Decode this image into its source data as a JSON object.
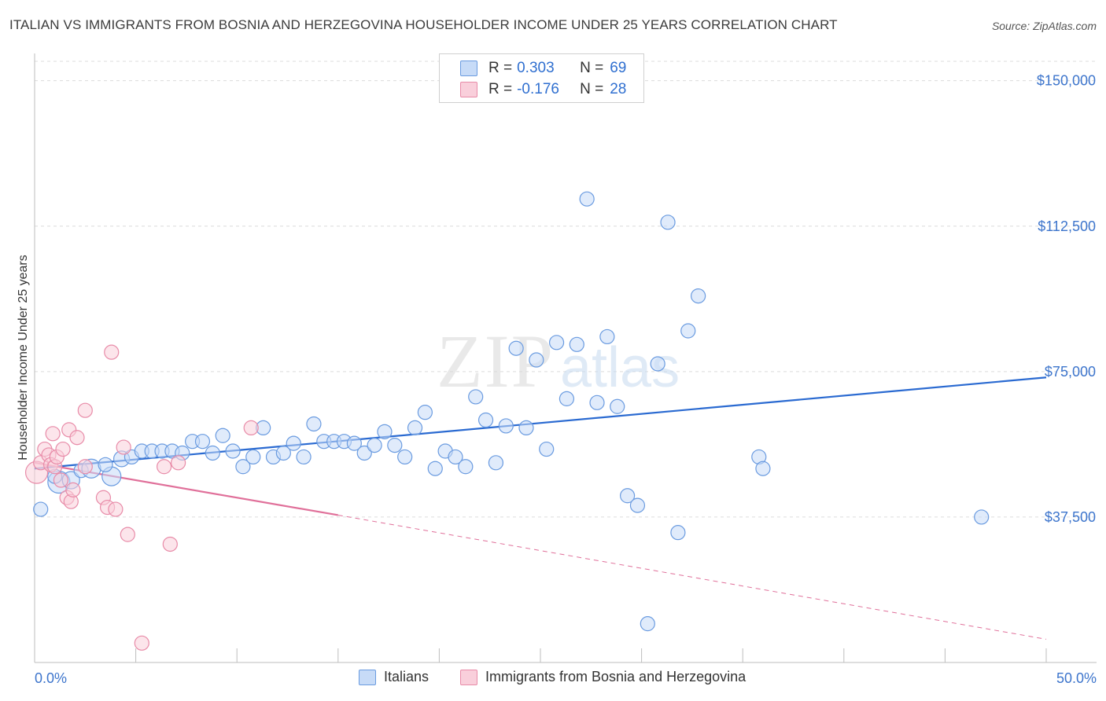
{
  "title": "ITALIAN VS IMMIGRANTS FROM BOSNIA AND HERZEGOVINA HOUSEHOLDER INCOME UNDER 25 YEARS CORRELATION CHART",
  "source": "Source: ZipAtlas.com",
  "watermark": {
    "zip": "ZIP",
    "atlas": "atlas"
  },
  "legend": {
    "rows": [
      {
        "r_label": "R =",
        "r_value": "0.303",
        "n_label": "N =",
        "n_value": "69"
      },
      {
        "r_label": "R =",
        "r_value": "-0.176",
        "n_label": "N =",
        "n_value": "28"
      }
    ]
  },
  "bottom_legend": {
    "series1": "Italians",
    "series2": "Immigrants from Bosnia and Herzegovina"
  },
  "colors": {
    "blue_fill": "#c7dbf7",
    "blue_stroke": "#6a9be0",
    "blue_line": "#2a6ad1",
    "pink_fill": "#f9cfdb",
    "pink_stroke": "#e88ba8",
    "pink_line": "#e0709a",
    "tick_text": "#3d75cc",
    "grid": "#dcdcdc"
  },
  "chart_data": {
    "type": "scatter",
    "title": "ITALIAN VS IMMIGRANTS FROM BOSNIA AND HERZEGOVINA HOUSEHOLDER INCOME UNDER 25 YEARS CORRELATION CHART",
    "xlabel": "",
    "ylabel": "Householder Income Under 25 years",
    "xlim": [
      0,
      50
    ],
    "ylim": [
      0,
      155000
    ],
    "x_tick_labels": {
      "left": "0.0%",
      "right": "50.0%"
    },
    "y_ticks": [
      {
        "value": 37500,
        "label": "$37,500"
      },
      {
        "value": 75000,
        "label": "$75,000"
      },
      {
        "value": 112500,
        "label": "$112,500"
      },
      {
        "value": 150000,
        "label": "$150,000"
      }
    ],
    "series": [
      {
        "name": "Italians",
        "r": 0.303,
        "n": 69,
        "trend": {
          "x0": 0,
          "y0": 50000,
          "x1": 50,
          "y1": 73500,
          "dashed_from": null
        },
        "points": [
          {
            "x": 0.3,
            "y": 39500,
            "s": 9
          },
          {
            "x": 1.2,
            "y": 46500,
            "s": 14
          },
          {
            "x": 1.8,
            "y": 47000,
            "s": 11
          },
          {
            "x": 2.3,
            "y": 49500,
            "s": 9
          },
          {
            "x": 2.8,
            "y": 50000,
            "s": 12
          },
          {
            "x": 3.8,
            "y": 48000,
            "s": 12
          },
          {
            "x": 4.3,
            "y": 52500,
            "s": 10
          },
          {
            "x": 4.8,
            "y": 53000,
            "s": 9
          },
          {
            "x": 5.3,
            "y": 54500,
            "s": 9
          },
          {
            "x": 5.8,
            "y": 54500,
            "s": 9
          },
          {
            "x": 6.3,
            "y": 54500,
            "s": 9
          },
          {
            "x": 6.8,
            "y": 54500,
            "s": 9
          },
          {
            "x": 7.3,
            "y": 54000,
            "s": 9
          },
          {
            "x": 7.8,
            "y": 57000,
            "s": 9
          },
          {
            "x": 8.3,
            "y": 57000,
            "s": 9
          },
          {
            "x": 8.8,
            "y": 54000,
            "s": 9
          },
          {
            "x": 9.3,
            "y": 58500,
            "s": 9
          },
          {
            "x": 9.8,
            "y": 54500,
            "s": 9
          },
          {
            "x": 10.3,
            "y": 50500,
            "s": 9
          },
          {
            "x": 10.8,
            "y": 53000,
            "s": 9
          },
          {
            "x": 11.3,
            "y": 60500,
            "s": 9
          },
          {
            "x": 11.8,
            "y": 53000,
            "s": 9
          },
          {
            "x": 12.3,
            "y": 54000,
            "s": 9
          },
          {
            "x": 12.8,
            "y": 56500,
            "s": 9
          },
          {
            "x": 13.3,
            "y": 53000,
            "s": 9
          },
          {
            "x": 13.8,
            "y": 61500,
            "s": 9
          },
          {
            "x": 14.3,
            "y": 57000,
            "s": 9
          },
          {
            "x": 14.8,
            "y": 57000,
            "s": 9
          },
          {
            "x": 15.3,
            "y": 57000,
            "s": 9
          },
          {
            "x": 15.8,
            "y": 56500,
            "s": 9
          },
          {
            "x": 16.3,
            "y": 54000,
            "s": 9
          },
          {
            "x": 16.8,
            "y": 56000,
            "s": 9
          },
          {
            "x": 17.3,
            "y": 59500,
            "s": 9
          },
          {
            "x": 17.8,
            "y": 56000,
            "s": 9
          },
          {
            "x": 18.3,
            "y": 53000,
            "s": 9
          },
          {
            "x": 18.8,
            "y": 60500,
            "s": 9
          },
          {
            "x": 19.3,
            "y": 64500,
            "s": 9
          },
          {
            "x": 19.8,
            "y": 50000,
            "s": 9
          },
          {
            "x": 20.3,
            "y": 54500,
            "s": 9
          },
          {
            "x": 20.8,
            "y": 53000,
            "s": 9
          },
          {
            "x": 21.3,
            "y": 50500,
            "s": 9
          },
          {
            "x": 21.8,
            "y": 68500,
            "s": 9
          },
          {
            "x": 22.3,
            "y": 62500,
            "s": 9
          },
          {
            "x": 22.8,
            "y": 51500,
            "s": 9
          },
          {
            "x": 23.3,
            "y": 61000,
            "s": 9
          },
          {
            "x": 23.8,
            "y": 81000,
            "s": 9
          },
          {
            "x": 24.3,
            "y": 60500,
            "s": 9
          },
          {
            "x": 24.8,
            "y": 78000,
            "s": 9
          },
          {
            "x": 25.3,
            "y": 55000,
            "s": 9
          },
          {
            "x": 25.8,
            "y": 82500,
            "s": 9
          },
          {
            "x": 26.3,
            "y": 68000,
            "s": 9
          },
          {
            "x": 26.8,
            "y": 82000,
            "s": 9
          },
          {
            "x": 27.3,
            "y": 119500,
            "s": 9
          },
          {
            "x": 27.8,
            "y": 67000,
            "s": 9
          },
          {
            "x": 28.3,
            "y": 84000,
            "s": 9
          },
          {
            "x": 28.8,
            "y": 66000,
            "s": 9
          },
          {
            "x": 29.3,
            "y": 43000,
            "s": 9
          },
          {
            "x": 29.8,
            "y": 40500,
            "s": 9
          },
          {
            "x": 30.3,
            "y": 10000,
            "s": 9
          },
          {
            "x": 30.8,
            "y": 77000,
            "s": 9
          },
          {
            "x": 31.3,
            "y": 113500,
            "s": 9
          },
          {
            "x": 31.8,
            "y": 33500,
            "s": 9
          },
          {
            "x": 32.3,
            "y": 85500,
            "s": 9
          },
          {
            "x": 32.8,
            "y": 94500,
            "s": 9
          },
          {
            "x": 35.8,
            "y": 53000,
            "s": 9
          },
          {
            "x": 36.0,
            "y": 50000,
            "s": 9
          },
          {
            "x": 46.8,
            "y": 37500,
            "s": 9
          },
          {
            "x": 3.5,
            "y": 51000,
            "s": 9
          },
          {
            "x": 1.0,
            "y": 48000,
            "s": 9
          }
        ]
      },
      {
        "name": "Immigrants from Bosnia and Herzegovina",
        "r": -0.176,
        "n": 28,
        "trend": {
          "x0": 0,
          "y0": 51500,
          "x1": 15,
          "y1": 38000,
          "dashed_to_x": 50,
          "dashed_to_y": 6000
        },
        "points": [
          {
            "x": 0.1,
            "y": 49000,
            "s": 14
          },
          {
            "x": 0.3,
            "y": 51500,
            "s": 9
          },
          {
            "x": 0.5,
            "y": 55000,
            "s": 9
          },
          {
            "x": 0.7,
            "y": 53500,
            "s": 9
          },
          {
            "x": 0.8,
            "y": 51000,
            "s": 9
          },
          {
            "x": 0.9,
            "y": 59000,
            "s": 9
          },
          {
            "x": 1.0,
            "y": 50500,
            "s": 9
          },
          {
            "x": 1.1,
            "y": 53000,
            "s": 9
          },
          {
            "x": 1.3,
            "y": 47000,
            "s": 9
          },
          {
            "x": 1.4,
            "y": 55000,
            "s": 9
          },
          {
            "x": 1.6,
            "y": 42500,
            "s": 9
          },
          {
            "x": 1.7,
            "y": 60000,
            "s": 9
          },
          {
            "x": 1.8,
            "y": 41500,
            "s": 9
          },
          {
            "x": 1.9,
            "y": 44500,
            "s": 9
          },
          {
            "x": 2.1,
            "y": 58000,
            "s": 9
          },
          {
            "x": 2.5,
            "y": 65000,
            "s": 9
          },
          {
            "x": 2.5,
            "y": 50500,
            "s": 9
          },
          {
            "x": 3.4,
            "y": 42500,
            "s": 9
          },
          {
            "x": 3.6,
            "y": 40000,
            "s": 9
          },
          {
            "x": 3.8,
            "y": 80000,
            "s": 9
          },
          {
            "x": 4.0,
            "y": 39500,
            "s": 9
          },
          {
            "x": 4.4,
            "y": 55500,
            "s": 9
          },
          {
            "x": 4.6,
            "y": 33000,
            "s": 9
          },
          {
            "x": 5.3,
            "y": 5000,
            "s": 9
          },
          {
            "x": 6.4,
            "y": 50500,
            "s": 9
          },
          {
            "x": 6.7,
            "y": 30500,
            "s": 9
          },
          {
            "x": 7.1,
            "y": 51500,
            "s": 9
          },
          {
            "x": 10.7,
            "y": 60500,
            "s": 9
          }
        ]
      }
    ]
  }
}
